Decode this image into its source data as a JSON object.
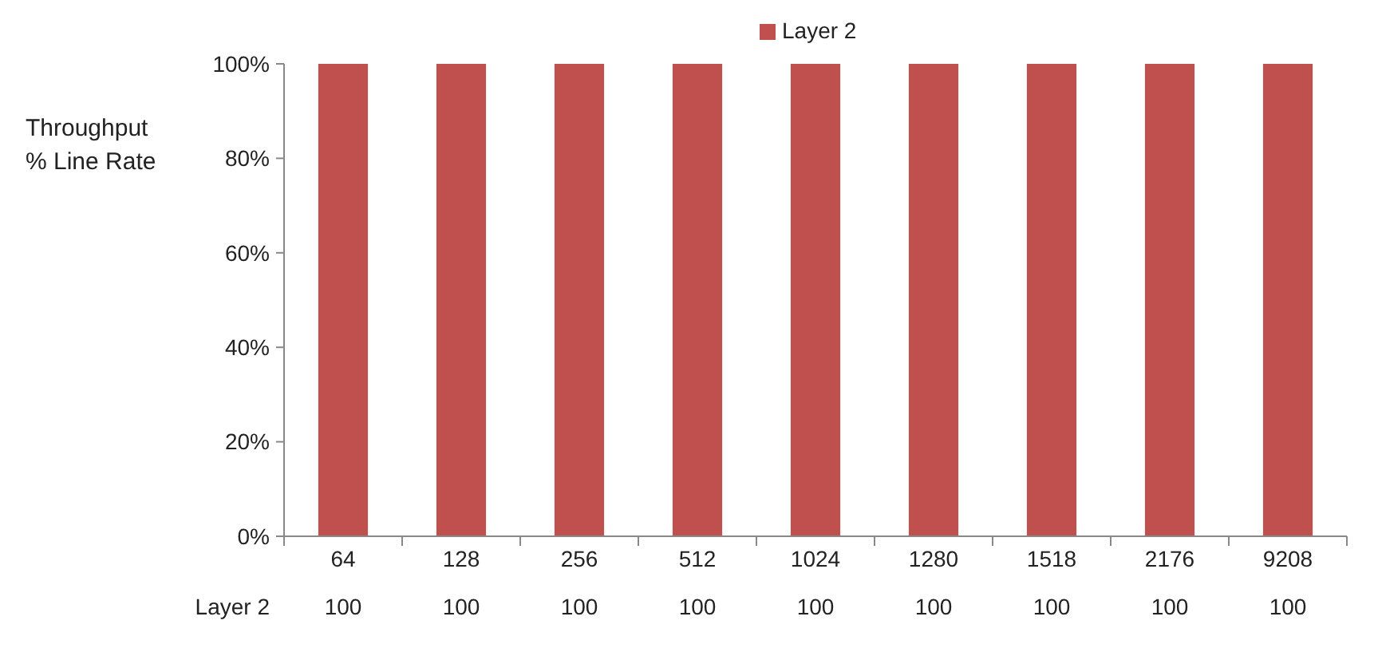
{
  "chart_data": {
    "type": "bar",
    "ylabel": "Throughput % Line Rate",
    "categories": [
      "64",
      "128",
      "256",
      "512",
      "1024",
      "1280",
      "1518",
      "2176",
      "9208"
    ],
    "series": [
      {
        "name": "Layer 2",
        "color": "#c0504d",
        "values": [
          100,
          100,
          100,
          100,
          100,
          100,
          100,
          100,
          100
        ]
      }
    ],
    "ylim": [
      0,
      100
    ],
    "yticks": [
      {
        "value": 0,
        "label": "0%"
      },
      {
        "value": 20,
        "label": "20%"
      },
      {
        "value": 40,
        "label": "40%"
      },
      {
        "value": 60,
        "label": "60%"
      },
      {
        "value": 80,
        "label": "80%"
      },
      {
        "value": 100,
        "label": "100%"
      }
    ],
    "data_labels": true,
    "legend": "top",
    "grid": false
  }
}
